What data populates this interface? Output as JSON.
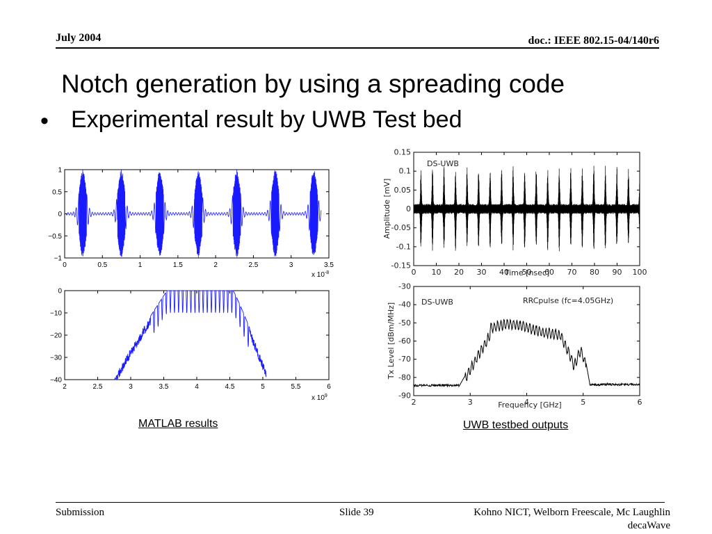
{
  "header": {
    "date": "July 2004",
    "doc": "doc.: IEEE 802.15-04/140r6"
  },
  "title": "Notch generation by using a spreading code",
  "bullet": "Experimental result by UWB Test bed",
  "captions": {
    "left": "MATLAB results",
    "right": "UWB testbed outputs"
  },
  "footer": {
    "left": "Submission",
    "center": "Slide 39",
    "right_line1": "Kohno NICT, Welborn Freescale, Mc Laughlin",
    "right_line2": "decaWave"
  },
  "colors": {
    "matlab": "#1a1aff",
    "testbed": "#000000"
  },
  "chart_data": [
    {
      "name": "matlab-time",
      "type": "line",
      "xlim": [
        0,
        3.5
      ],
      "ylim": [
        -1,
        1
      ],
      "x_ticks": [
        "0",
        "0.5",
        "1",
        "1.5",
        "2",
        "2.5",
        "3",
        "3.5"
      ],
      "y_ticks": [
        "1",
        "0.5",
        "0",
        "−0.5",
        "−1"
      ],
      "x_exponent": "x 10",
      "x_exponent_power": "-8",
      "pulse_centers": [
        0.24,
        0.75,
        1.26,
        1.77,
        2.28,
        2.79,
        3.3
      ]
    },
    {
      "name": "matlab-spectrum",
      "type": "line",
      "xlim": [
        2,
        6
      ],
      "ylim": [
        -40,
        0
      ],
      "x_ticks": [
        "2",
        "2.5",
        "3",
        "3.5",
        "4",
        "4.5",
        "5",
        "5.5",
        "6"
      ],
      "y_ticks": [
        "0",
        "−10",
        "−20",
        "−30",
        "−40"
      ],
      "x_exponent": "x 10",
      "x_exponent_power": "9"
    },
    {
      "name": "testbed-time",
      "type": "line",
      "xlabel": "Time [nsec]",
      "ylabel": "Amplitude [mV]",
      "legend": "DS-UWB",
      "xlim": [
        0,
        100
      ],
      "ylim": [
        -0.15,
        0.15
      ],
      "x_ticks": [
        "0",
        "10",
        "20",
        "30",
        "40",
        "50",
        "60",
        "70",
        "80",
        "90",
        "100"
      ],
      "y_ticks": [
        "0.15",
        "0.1",
        "0.05",
        "0",
        "-0.05",
        "-0.1",
        "-0.15"
      ]
    },
    {
      "name": "testbed-spectrum",
      "type": "line",
      "xlabel": "Frequency [GHz]",
      "ylabel": "Tx Level [dBm/MHz]",
      "legend": "DS-UWB",
      "annotation": "RRCpulse (fc=4.05GHz)",
      "xlim": [
        2,
        6
      ],
      "ylim": [
        -90,
        -30
      ],
      "x_ticks": [
        "2",
        "3",
        "4",
        "5",
        "6"
      ],
      "y_ticks": [
        "-30",
        "-40",
        "-50",
        "-60",
        "-70",
        "-80",
        "-90"
      ]
    }
  ]
}
